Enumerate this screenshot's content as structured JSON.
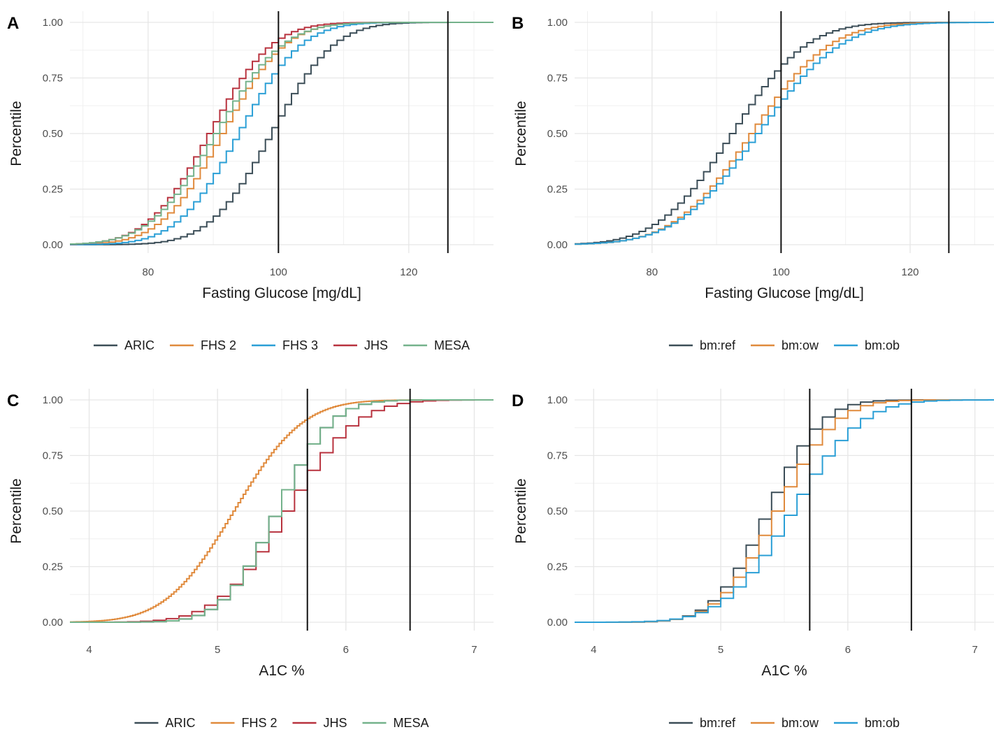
{
  "colors": {
    "ARIC": "#3b4d57",
    "FHS 2": "#e08a3c",
    "FHS 3": "#2a9fd6",
    "JHS": "#b8323e",
    "MESA": "#74b28b",
    "bm:ref": "#3b4d57",
    "bm:ow": "#e08a3c",
    "bm:ob": "#2a9fd6"
  },
  "chart_data": [
    {
      "panel": "A",
      "type": "line",
      "step": true,
      "xlabel": "Fasting Glucose [mg/dL]",
      "ylabel": "Percentile",
      "xlim": [
        68,
        133
      ],
      "ylim": [
        0,
        1
      ],
      "x_ticks": [
        80,
        100,
        120
      ],
      "y_ticks": [
        "0.00",
        "0.25",
        "0.50",
        "0.75",
        "1.00"
      ],
      "grid": true,
      "vlines": [
        100,
        126
      ],
      "legend_position": "bottom",
      "legend": [
        "ARIC",
        "FHS 2",
        "FHS 3",
        "JHS",
        "MESA"
      ],
      "step_width": 1,
      "series": [
        {
          "name": "ARIC",
          "mean": 98.5,
          "sd": 7.5
        },
        {
          "name": "FHS 2",
          "mean": 91,
          "sd": 7.5
        },
        {
          "name": "FHS 3",
          "mean": 93.5,
          "sd": 7.5
        },
        {
          "name": "JHS",
          "mean": 89,
          "sd": 7.5
        },
        {
          "name": "MESA",
          "mean": 90,
          "sd": 8
        }
      ]
    },
    {
      "panel": "B",
      "type": "line",
      "step": true,
      "xlabel": "Fasting Glucose [mg/dL]",
      "ylabel": "Percentile",
      "xlim": [
        68,
        133
      ],
      "ylim": [
        0,
        1
      ],
      "x_ticks": [
        80,
        100,
        120
      ],
      "y_ticks": [
        "0.00",
        "0.25",
        "0.50",
        "0.75",
        "1.00"
      ],
      "grid": true,
      "vlines": [
        100,
        126
      ],
      "legend_position": "bottom",
      "legend": [
        "bm:ref",
        "bm:ow",
        "bm:ob"
      ],
      "step_width": 1,
      "series": [
        {
          "name": "bm:ref",
          "mean": 92,
          "sd": 9
        },
        {
          "name": "bm:ow",
          "mean": 95,
          "sd": 9.5
        },
        {
          "name": "bm:ob",
          "mean": 96,
          "sd": 10
        }
      ]
    },
    {
      "panel": "C",
      "type": "line",
      "step": true,
      "xlabel": "A1C %",
      "ylabel": "Percentile",
      "xlim": [
        3.85,
        7.15
      ],
      "ylim": [
        0,
        1
      ],
      "x_ticks": [
        4,
        5,
        6,
        7
      ],
      "y_ticks": [
        "0.00",
        "0.25",
        "0.50",
        "0.75",
        "1.00"
      ],
      "grid": true,
      "vlines": [
        5.7,
        6.5
      ],
      "legend_position": "bottom",
      "legend": [
        "ARIC",
        "FHS 2",
        "JHS",
        "MESA"
      ],
      "series": [
        {
          "name": "ARIC",
          "mean": 5.42,
          "sd": 0.33,
          "step_width": 0.1
        },
        {
          "name": "FHS 2",
          "mean": 5.12,
          "sd": 0.42,
          "step_width": 0.02
        },
        {
          "name": "JHS",
          "mean": 5.5,
          "sd": 0.42,
          "step_width": 0.1
        },
        {
          "name": "MESA",
          "mean": 5.42,
          "sd": 0.33,
          "step_width": 0.1
        }
      ]
    },
    {
      "panel": "D",
      "type": "line",
      "step": true,
      "xlabel": "A1C %",
      "ylabel": "Percentile",
      "xlim": [
        3.85,
        7.15
      ],
      "ylim": [
        0,
        1
      ],
      "x_ticks": [
        4,
        5,
        6,
        7
      ],
      "y_ticks": [
        "0.00",
        "0.25",
        "0.50",
        "0.75",
        "1.00"
      ],
      "grid": true,
      "vlines": [
        5.7,
        6.5
      ],
      "legend_position": "bottom",
      "legend": [
        "bm:ref",
        "bm:ow",
        "bm:ob"
      ],
      "step_width": 0.1,
      "series": [
        {
          "name": "bm:ref",
          "mean": 5.33,
          "sd": 0.33
        },
        {
          "name": "bm:ow",
          "mean": 5.4,
          "sd": 0.36
        },
        {
          "name": "bm:ob",
          "mean": 5.52,
          "sd": 0.42
        }
      ]
    }
  ]
}
